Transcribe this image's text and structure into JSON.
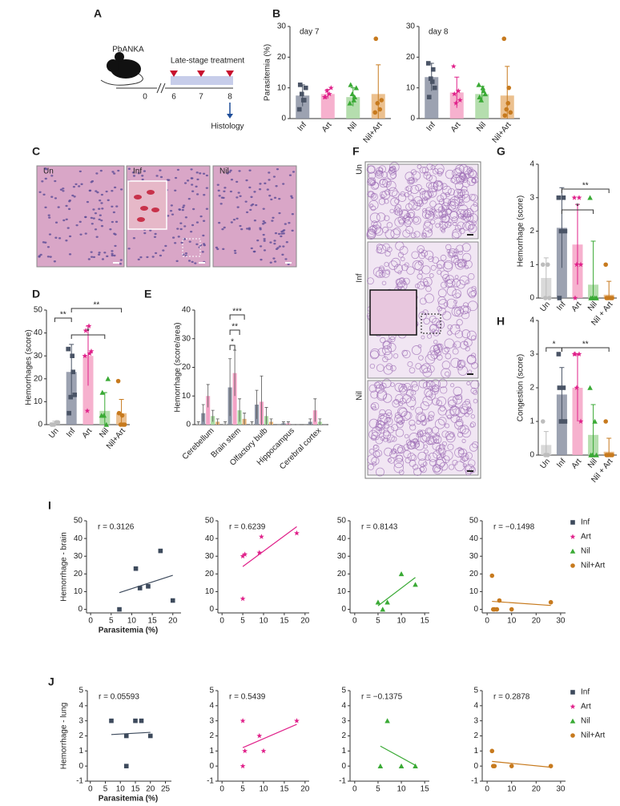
{
  "panel_labels": [
    "A",
    "B",
    "C",
    "D",
    "E",
    "F",
    "G",
    "H",
    "I",
    "J"
  ],
  "schematic": {
    "strain": "PbANKA",
    "treatment": "Late-stage treatment",
    "days": [
      "0",
      "6",
      "7",
      "8"
    ],
    "endpoint": "Histology"
  },
  "brain_images": [
    "Un",
    "Inf",
    "Nil"
  ],
  "lung_images": [
    "Un",
    "Inf",
    "Nil"
  ],
  "chart_data": [
    {
      "type": "bar",
      "title": "day 7",
      "ylabel": "Parasitemia (%)",
      "categories": [
        "Inf",
        "Art",
        "Nil",
        "Nil+Art"
      ],
      "values": [
        7.5,
        8,
        7,
        8
      ],
      "errors": [
        3.5,
        1.5,
        3,
        9.5
      ],
      "bar_colors": [
        "#8b92a3",
        "#f4a3c6",
        "#a8d8a0",
        "#e8b57b"
      ],
      "point_colors": [
        "#4a5466",
        "#e0218a",
        "#3aaa35",
        "#c77a1e"
      ],
      "markers": [
        "square",
        "star",
        "triangle",
        "circle"
      ],
      "points": [
        [
          3,
          6,
          8,
          10,
          11,
          6
        ],
        [
          7,
          8,
          9,
          10,
          7
        ],
        [
          5,
          7,
          8,
          10,
          11,
          6
        ],
        [
          2,
          3,
          5,
          6,
          26
        ]
      ],
      "ylim": [
        0,
        30
      ],
      "yticks": [
        0,
        10,
        20,
        30
      ]
    },
    {
      "type": "bar",
      "title": "day 8",
      "categories": [
        "Inf",
        "Art",
        "Nil",
        "Nil+Art"
      ],
      "values": [
        13.5,
        8.5,
        8,
        7.5
      ],
      "errors": [
        4.5,
        5,
        2.5,
        9.5
      ],
      "bar_colors": [
        "#8b92a3",
        "#f4a3c6",
        "#a8d8a0",
        "#e8b57b"
      ],
      "point_colors": [
        "#4a5466",
        "#e0218a",
        "#3aaa35",
        "#c77a1e"
      ],
      "markers": [
        "square",
        "star",
        "triangle",
        "circle"
      ],
      "points": [
        [
          18,
          16,
          13,
          10,
          7,
          12
        ],
        [
          17,
          9,
          5,
          6,
          8
        ],
        [
          11,
          9,
          6,
          8,
          7,
          10
        ],
        [
          26,
          10,
          3,
          2,
          1,
          5
        ]
      ],
      "ylim": [
        0,
        30
      ],
      "yticks": [
        0,
        10,
        20,
        30
      ]
    },
    {
      "type": "bar",
      "ylabel": "Hemorrhages (score)",
      "categories": [
        "Un",
        "Inf",
        "Art",
        "Nil",
        "Nil+Art"
      ],
      "values": [
        1,
        23,
        30,
        6,
        5
      ],
      "errors": [
        0.5,
        12,
        13,
        8,
        6
      ],
      "bar_colors": [
        "#d2d2d2",
        "#8b92a3",
        "#f4a3c6",
        "#a8d8a0",
        "#e8b57b"
      ],
      "point_colors": [
        "#bdbdbd",
        "#4a5466",
        "#e0218a",
        "#3aaa35",
        "#c77a1e"
      ],
      "markers": [
        "circle",
        "square",
        "star",
        "triangle",
        "circle"
      ],
      "points": [
        [
          0,
          1,
          0,
          1,
          0
        ],
        [
          33,
          23,
          12,
          13,
          5,
          30
        ],
        [
          30,
          31,
          6,
          32,
          41,
          43
        ],
        [
          4,
          0,
          4,
          20,
          14
        ],
        [
          19,
          0,
          0,
          0,
          5,
          4
        ]
      ],
      "ylim": [
        0,
        50
      ],
      "yticks": [
        0,
        10,
        20,
        30,
        40,
        50
      ],
      "annotations": [
        "**",
        "**",
        "*"
      ]
    },
    {
      "type": "grouped_bar",
      "ylabel": "Hemorrhage (score/area)",
      "categories": [
        "Cerebellum",
        "Brain stem",
        "Olfactory bulb",
        "Hippocampus",
        "Cerebral cortex"
      ],
      "series": [
        {
          "color": "#d2d2d2",
          "values": [
            0.5,
            0.5,
            0.5,
            0,
            0
          ],
          "errors": [
            0.5,
            0.5,
            0.5,
            0,
            0
          ]
        },
        {
          "color": "#8b92a3",
          "values": [
            4,
            13,
            7,
            0.5,
            1
          ],
          "errors": [
            3,
            10,
            5,
            0.5,
            1
          ]
        },
        {
          "color": "#f4a3c6",
          "values": [
            10,
            18,
            8,
            0.5,
            5
          ],
          "errors": [
            4,
            8,
            9,
            0.5,
            4
          ]
        },
        {
          "color": "#a8d8a0",
          "values": [
            3,
            5,
            3,
            0,
            1
          ],
          "errors": [
            2,
            4,
            3,
            0,
            1
          ]
        },
        {
          "color": "#e8b57b",
          "values": [
            1,
            2,
            1,
            0,
            0
          ],
          "errors": [
            1,
            2,
            1,
            0,
            0
          ]
        }
      ],
      "ylim": [
        0,
        40
      ],
      "yticks": [
        0,
        10,
        20,
        30,
        40
      ],
      "annotations": [
        "***",
        "**",
        "*"
      ]
    },
    {
      "type": "bar",
      "ylabel": "Hemorrhage (score)",
      "categories": [
        "Un",
        "Inf",
        "Art",
        "Nil",
        "Nil + Art"
      ],
      "values": [
        0.6,
        2.1,
        1.6,
        0.4,
        0.1
      ],
      "errors": [
        0.6,
        1.2,
        1.2,
        1.3,
        0.4
      ],
      "bar_colors": [
        "#d2d2d2",
        "#8b92a3",
        "#f4a3c6",
        "#a8d8a0",
        "#e8b57b"
      ],
      "point_colors": [
        "#bdbdbd",
        "#4a5466",
        "#e0218a",
        "#3aaa35",
        "#c77a1e"
      ],
      "markers": [
        "circle",
        "square",
        "star",
        "triangle",
        "circle"
      ],
      "points": [
        [
          1,
          1,
          0,
          0
        ],
        [
          3,
          3,
          2,
          2,
          0
        ],
        [
          3,
          3,
          1,
          1,
          0
        ],
        [
          3,
          0,
          0,
          0,
          0
        ],
        [
          1,
          0,
          0,
          0,
          0
        ]
      ],
      "ylim": [
        0,
        4
      ],
      "yticks": [
        0,
        1,
        2,
        3,
        4
      ],
      "annotations": [
        "**",
        "*"
      ]
    },
    {
      "type": "bar",
      "ylabel": "Congestion (score)",
      "categories": [
        "Un",
        "Inf",
        "Art",
        "Nil",
        "Nil + Art"
      ],
      "values": [
        0.3,
        1.8,
        2,
        0.6,
        0.1
      ],
      "errors": [
        0.4,
        0.8,
        1,
        0.9,
        0.4
      ],
      "bar_colors": [
        "#d2d2d2",
        "#8b92a3",
        "#f4a3c6",
        "#a8d8a0",
        "#e8b57b"
      ],
      "point_colors": [
        "#bdbdbd",
        "#4a5466",
        "#e0218a",
        "#3aaa35",
        "#c77a1e"
      ],
      "markers": [
        "circle",
        "square",
        "star",
        "triangle",
        "circle"
      ],
      "points": [
        [
          1,
          0,
          0
        ],
        [
          3,
          2,
          1,
          1,
          2
        ],
        [
          3,
          3,
          2,
          1,
          3
        ],
        [
          2,
          1,
          0,
          0,
          0
        ],
        [
          1,
          0,
          0,
          0,
          0
        ]
      ],
      "ylim": [
        0,
        4
      ],
      "yticks": [
        0,
        1,
        2,
        3,
        4
      ],
      "annotations": [
        "*",
        "**"
      ]
    },
    {
      "type": "scatter",
      "annotation": "r = 0.3126",
      "ylabel": "Hemorrhage - brain",
      "xlabel": "Parasitemia (%)",
      "series": [
        {
          "color": "#3d4a5c",
          "marker": "square",
          "x": [
            7,
            11,
            12,
            14,
            17,
            20
          ],
          "y": [
            0,
            23,
            12,
            13,
            33,
            5
          ]
        }
      ],
      "xlim": [
        -1,
        22
      ],
      "xticks": [
        0,
        5,
        10,
        15,
        20
      ],
      "ylim": [
        -2,
        50
      ],
      "yticks": [
        0,
        10,
        20,
        30,
        40,
        50
      ]
    },
    {
      "type": "scatter",
      "annotation": "r = 0.6239",
      "series": [
        {
          "color": "#e0218a",
          "marker": "star",
          "x": [
            5,
            5.5,
            5,
            9,
            9.5,
            18
          ],
          "y": [
            30,
            31,
            6,
            32,
            41,
            43
          ]
        }
      ],
      "xlim": [
        -1,
        21
      ],
      "xticks": [
        0,
        5,
        10,
        15,
        20
      ],
      "ylim": [
        -2,
        50
      ],
      "yticks": [
        0,
        10,
        20,
        30,
        40,
        50
      ]
    },
    {
      "type": "scatter",
      "annotation": "r = 0.8143",
      "series": [
        {
          "color": "#3aaa35",
          "marker": "triangle",
          "x": [
            5,
            6,
            7,
            10,
            13
          ],
          "y": [
            4,
            0,
            4,
            20,
            14
          ]
        }
      ],
      "xlim": [
        -1,
        16
      ],
      "xticks": [
        0,
        5,
        10,
        15
      ],
      "ylim": [
        -2,
        50
      ],
      "yticks": [
        0,
        10,
        20,
        30,
        40,
        50
      ]
    },
    {
      "type": "scatter",
      "annotation": "r = −0.1498",
      "series": [
        {
          "color": "#c77a1e",
          "marker": "circle",
          "x": [
            2,
            2.5,
            3,
            4,
            5,
            10,
            26
          ],
          "y": [
            19,
            0,
            0,
            0,
            5,
            0,
            4
          ]
        }
      ],
      "xlim": [
        -2,
        32
      ],
      "xticks": [
        0,
        10,
        20,
        30
      ],
      "ylim": [
        -2,
        50
      ],
      "yticks": [
        0,
        10,
        20,
        30,
        40,
        50
      ],
      "legend": [
        {
          "name": "Inf",
          "color": "#3d4a5c",
          "marker": "square"
        },
        {
          "name": "Art",
          "color": "#e0218a",
          "marker": "star"
        },
        {
          "name": "Nil",
          "color": "#3aaa35",
          "marker": "triangle"
        },
        {
          "name": "Nil+Art",
          "color": "#c77a1e",
          "marker": "circle"
        }
      ]
    },
    {
      "type": "scatter",
      "annotation": "r = 0.05593",
      "ylabel": "Hemorrhage - lung",
      "xlabel": "Parasitemia (%)",
      "series": [
        {
          "color": "#3d4a5c",
          "marker": "square",
          "x": [
            7,
            12,
            12,
            15,
            17,
            20
          ],
          "y": [
            3,
            2,
            0,
            3,
            3,
            2
          ]
        }
      ],
      "xlim": [
        -1,
        27
      ],
      "xticks": [
        0,
        5,
        10,
        15,
        20,
        25
      ],
      "ylim": [
        -1,
        5
      ],
      "yticks": [
        5,
        4,
        3,
        2,
        1,
        0,
        -1
      ]
    },
    {
      "type": "scatter",
      "annotation": "r = 0.5439",
      "series": [
        {
          "color": "#e0218a",
          "marker": "star",
          "x": [
            5,
            5,
            5.5,
            9,
            10,
            18
          ],
          "y": [
            0,
            3,
            1,
            2,
            1,
            3
          ]
        }
      ],
      "xlim": [
        -1,
        21
      ],
      "xticks": [
        0,
        5,
        10,
        15,
        20
      ],
      "ylim": [
        -1,
        5
      ],
      "yticks": [
        5,
        4,
        3,
        2,
        1,
        0,
        -1
      ]
    },
    {
      "type": "scatter",
      "annotation": "r = −0.1375",
      "series": [
        {
          "color": "#3aaa35",
          "marker": "triangle",
          "x": [
            5.5,
            7,
            10,
            13
          ],
          "y": [
            0,
            3,
            0,
            0
          ]
        }
      ],
      "xlim": [
        -1,
        16
      ],
      "xticks": [
        0,
        5,
        10,
        15
      ],
      "ylim": [
        -1,
        5
      ],
      "yticks": [
        5,
        4,
        3,
        2,
        1,
        0,
        -1
      ]
    },
    {
      "type": "scatter",
      "annotation": "r = 0.2878",
      "series": [
        {
          "color": "#c77a1e",
          "marker": "circle",
          "x": [
            2,
            2.5,
            3,
            10,
            26
          ],
          "y": [
            1,
            0,
            0,
            0,
            0
          ]
        }
      ],
      "xlim": [
        -2,
        32
      ],
      "xticks": [
        0,
        10,
        20,
        30
      ],
      "ylim": [
        -1,
        5
      ],
      "yticks": [
        5,
        4,
        3,
        2,
        1,
        0,
        -1
      ],
      "legend": [
        {
          "name": "Inf",
          "color": "#3d4a5c",
          "marker": "square"
        },
        {
          "name": "Art",
          "color": "#e0218a",
          "marker": "star"
        },
        {
          "name": "Nil",
          "color": "#3aaa35",
          "marker": "triangle"
        },
        {
          "name": "Nil+Art",
          "color": "#c77a1e",
          "marker": "circle"
        }
      ]
    }
  ]
}
